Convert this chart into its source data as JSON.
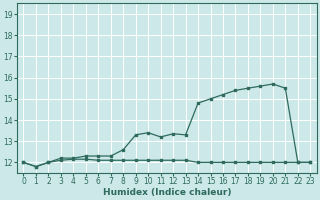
{
  "xlabel": "Humidex (Indice chaleur)",
  "bg_color": "#cce8e8",
  "line_color": "#2e6b5e",
  "grid_color": "#ffffff",
  "x_min": -0.5,
  "x_max": 23.5,
  "y_min": 11.5,
  "y_max": 19.5,
  "y_ticks": [
    12,
    13,
    14,
    15,
    16,
    17,
    18,
    19
  ],
  "x_ticks": [
    0,
    1,
    2,
    3,
    4,
    5,
    6,
    7,
    8,
    9,
    10,
    11,
    12,
    13,
    14,
    15,
    16,
    17,
    18,
    19,
    20,
    21,
    22,
    23
  ],
  "series1_x": [
    0,
    1,
    2,
    3,
    4,
    5,
    6,
    7,
    8,
    9,
    10,
    11,
    12,
    13,
    14,
    15,
    16,
    17,
    18,
    19,
    20,
    21,
    22,
    23
  ],
  "series1_y": [
    12.0,
    11.8,
    12.0,
    12.1,
    12.15,
    12.15,
    12.1,
    12.1,
    12.1,
    12.1,
    12.1,
    12.1,
    12.1,
    12.1,
    12.0,
    12.0,
    12.0,
    12.0,
    12.0,
    12.0,
    12.0,
    12.0,
    12.0,
    12.0
  ],
  "series2_x": [
    0,
    1,
    2,
    3,
    4,
    5,
    6,
    7,
    8,
    9,
    10,
    11,
    12,
    13,
    14,
    15,
    16,
    17,
    18,
    19,
    20,
    21,
    22,
    23
  ],
  "series2_y": [
    12.0,
    11.8,
    12.0,
    12.2,
    12.2,
    12.3,
    12.3,
    12.3,
    12.6,
    13.3,
    13.4,
    13.2,
    13.35,
    13.3,
    14.8,
    15.0,
    15.2,
    15.4,
    15.5,
    15.6,
    15.7,
    15.5,
    12.0,
    12.0
  ]
}
